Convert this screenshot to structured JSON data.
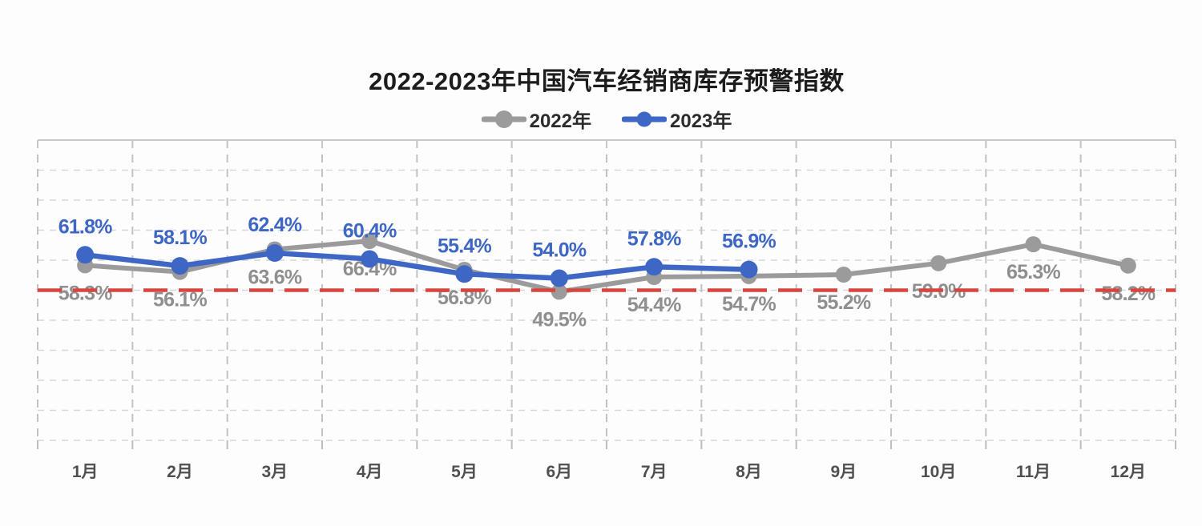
{
  "page_title": "2022-2023年中国汽车经销商库存预警指数",
  "chart_data": {
    "type": "line",
    "title": "2022-2023年中国汽车经销商库存预警指数",
    "categories": [
      "1月",
      "2月",
      "3月",
      "4月",
      "5月",
      "6月",
      "7月",
      "8月",
      "9月",
      "10月",
      "11月",
      "12月"
    ],
    "series": [
      {
        "name": "2022年",
        "color": "#9b9b9b",
        "label_color": "#8f8f8f",
        "label_position": "below",
        "values": [
          58.3,
          56.1,
          63.6,
          66.4,
          56.8,
          49.5,
          54.4,
          54.7,
          55.2,
          59.0,
          65.3,
          58.2
        ]
      },
      {
        "name": "2023年",
        "color": "#3e66c4",
        "label_color": "#3e66c4",
        "label_position": "above",
        "values": [
          61.8,
          58.1,
          62.4,
          60.4,
          55.4,
          54.0,
          57.8,
          56.9
        ]
      }
    ],
    "value_suffix": "%",
    "value_decimals": 1,
    "threshold_line": {
      "value": 50,
      "color": "#d8453e",
      "style": "dashed"
    },
    "ylim": [
      0,
      100
    ],
    "grid_step": 10,
    "grid": true,
    "legend_position": "top",
    "xlabel": "",
    "ylabel": "",
    "axis_label_color": "#4f4f4f",
    "gridline_color_h": "#d7d7d7",
    "gridline_color_v": "#c2c2c2",
    "border_color": "#c8c8c8"
  }
}
